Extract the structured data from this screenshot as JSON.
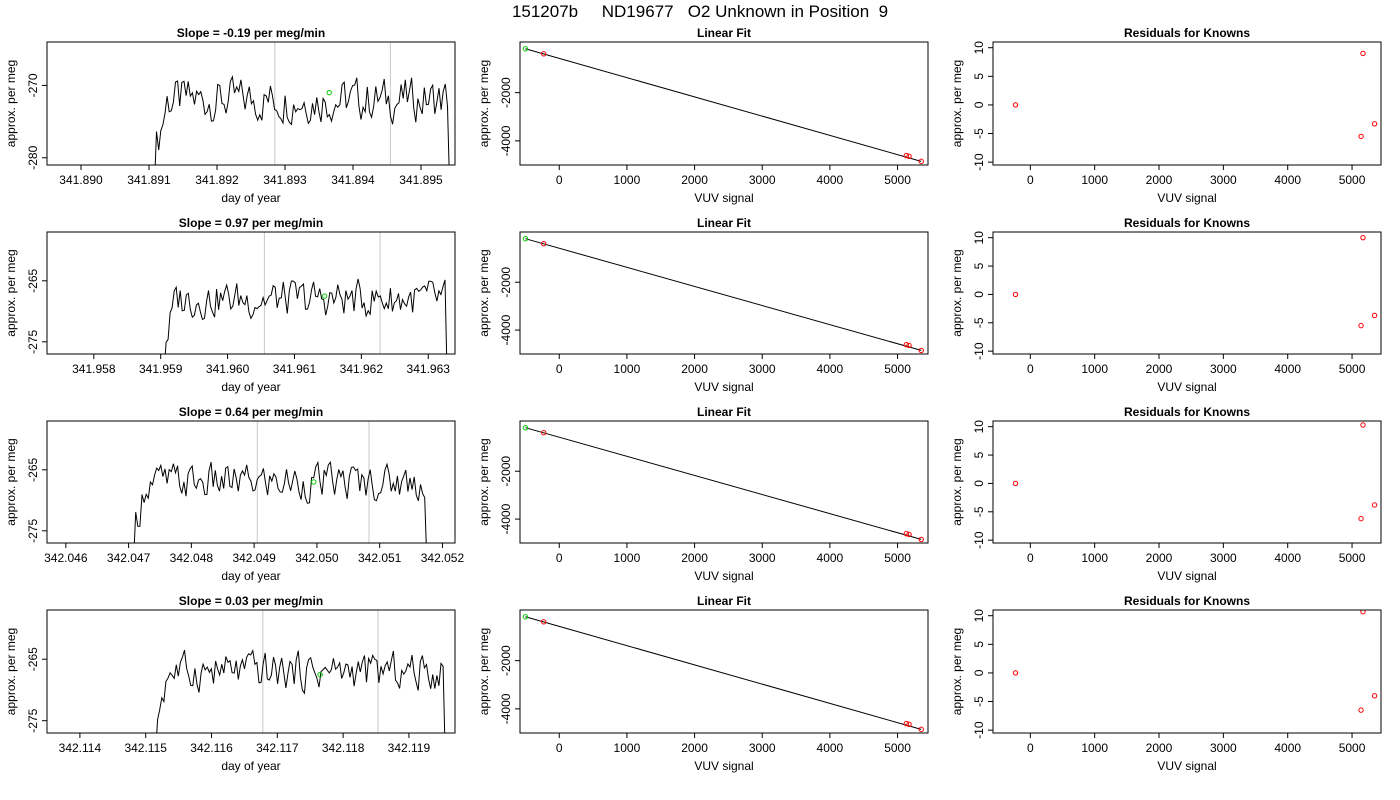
{
  "page_title": "151207b     ND19677   O2 Unknown in Position  9",
  "colors": {
    "known_point": "#ff0000",
    "unknown_point": "#00cc00",
    "trace": "#000000",
    "marker_line": "#c8c8c8"
  },
  "chart_data": [
    {
      "type": "line",
      "title": "Slope =  -0.19  per meg/min",
      "xlabel": "day of year",
      "ylabel": "approx. per meg",
      "xlim": [
        341.8895,
        341.8955
      ],
      "ylim": [
        -281,
        -264
      ],
      "xticks": [
        341.89,
        341.891,
        341.892,
        341.893,
        341.894,
        341.895
      ],
      "xtick_labels": [
        "341.890",
        "341.891",
        "341.892",
        "341.893",
        "341.894",
        "341.895"
      ],
      "yticks": [
        -270,
        -280
      ],
      "ytick_labels": [
        "-270",
        "-280"
      ],
      "marker_lines_x": [
        341.89285,
        341.89455
      ],
      "trace_start": 341.89108,
      "trace_end": 341.89542,
      "trace_mean": -272.0,
      "trace_amp": 3.0,
      "highlight_point": {
        "x": 341.89365,
        "y": -271.0
      }
    },
    {
      "type": "scatter",
      "title": "Linear Fit",
      "xlabel": "VUV signal",
      "ylabel": "approx. per meg",
      "xlim": [
        -580,
        5450
      ],
      "ylim": [
        -5000,
        100
      ],
      "xticks": [
        0,
        1000,
        2000,
        3000,
        4000,
        5000
      ],
      "xtick_labels": [
        "0",
        "1000",
        "2000",
        "3000",
        "4000",
        "5000"
      ],
      "yticks": [
        -2000,
        -4000
      ],
      "ytick_labels": [
        "-2000",
        "-4000"
      ],
      "fit_line": [
        [
          -500,
          -180
        ],
        [
          5350,
          -4850
        ]
      ],
      "points_known": [
        [
          -230,
          -390
        ],
        [
          5130,
          -4610
        ],
        [
          5170,
          -4640
        ],
        [
          5350,
          -4850
        ]
      ],
      "points_unknown": [
        [
          -500,
          -180
        ]
      ]
    },
    {
      "type": "scatter",
      "title": "Residuals for Knowns",
      "xlabel": "VUV signal",
      "ylabel": "approx. per meg",
      "xlim": [
        -580,
        5450
      ],
      "ylim": [
        -10.5,
        11
      ],
      "xticks": [
        0,
        1000,
        2000,
        3000,
        4000,
        5000
      ],
      "xtick_labels": [
        "0",
        "1000",
        "2000",
        "3000",
        "4000",
        "5000"
      ],
      "yticks": [
        10,
        5,
        0,
        -5,
        -10
      ],
      "ytick_labels": [
        "10",
        "5",
        "0",
        "-5",
        "-10"
      ],
      "points_known": [
        [
          -230,
          0.0
        ],
        [
          5140,
          -5.5
        ],
        [
          5170,
          9.0
        ],
        [
          5350,
          -3.3
        ]
      ]
    },
    {
      "type": "line",
      "title": "Slope =  0.97  per meg/min",
      "xlabel": "day of year",
      "ylabel": "approx. per meg",
      "xlim": [
        341.9573,
        341.9634
      ],
      "ylim": [
        -277,
        -257
      ],
      "xticks": [
        341.958,
        341.959,
        341.96,
        341.961,
        341.962,
        341.963
      ],
      "xtick_labels": [
        "341.958",
        "341.959",
        "341.960",
        "341.961",
        "341.962",
        "341.963"
      ],
      "yticks": [
        -265,
        -275
      ],
      "ytick_labels": [
        "-265",
        "-275"
      ],
      "marker_lines_x": [
        341.96055,
        341.96228
      ],
      "trace_start": 341.95905,
      "trace_end": 341.96328,
      "trace_mean": -268.0,
      "trace_amp": 3.0,
      "highlight_point": {
        "x": 341.96145,
        "y": -267.5
      }
    },
    {
      "type": "scatter",
      "title": "Linear Fit",
      "xlabel": "VUV signal",
      "ylabel": "approx. per meg",
      "xlim": [
        -580,
        5450
      ],
      "ylim": [
        -5000,
        100
      ],
      "xticks": [
        0,
        1000,
        2000,
        3000,
        4000,
        5000
      ],
      "xtick_labels": [
        "0",
        "1000",
        "2000",
        "3000",
        "4000",
        "5000"
      ],
      "yticks": [
        -2000,
        -4000
      ],
      "ytick_labels": [
        "-2000",
        "-4000"
      ],
      "fit_line": [
        [
          -500,
          -180
        ],
        [
          5350,
          -4850
        ]
      ],
      "points_known": [
        [
          -230,
          -390
        ],
        [
          5130,
          -4610
        ],
        [
          5170,
          -4640
        ],
        [
          5350,
          -4850
        ]
      ],
      "points_unknown": [
        [
          -500,
          -180
        ]
      ]
    },
    {
      "type": "scatter",
      "title": "Residuals for Knowns",
      "xlabel": "VUV signal",
      "ylabel": "approx. per meg",
      "xlim": [
        -580,
        5450
      ],
      "ylim": [
        -10.5,
        11
      ],
      "xticks": [
        0,
        1000,
        2000,
        3000,
        4000,
        5000
      ],
      "xtick_labels": [
        "0",
        "1000",
        "2000",
        "3000",
        "4000",
        "5000"
      ],
      "yticks": [
        10,
        5,
        0,
        -5,
        -10
      ],
      "ytick_labels": [
        "10",
        "5",
        "0",
        "-5",
        "-10"
      ],
      "points_known": [
        [
          -230,
          0.0
        ],
        [
          5140,
          -5.5
        ],
        [
          5170,
          10.0
        ],
        [
          5350,
          -3.7
        ]
      ]
    },
    {
      "type": "line",
      "title": "Slope =  0.64  per meg/min",
      "xlabel": "day of year",
      "ylabel": "approx. per meg",
      "xlim": [
        342.0457,
        342.0522
      ],
      "ylim": [
        -277,
        -257
      ],
      "xticks": [
        342.046,
        342.047,
        342.048,
        342.049,
        342.05,
        342.051,
        342.052
      ],
      "xtick_labels": [
        "342.046",
        "342.047",
        "342.048",
        "342.049",
        "342.050",
        "342.051",
        "342.052"
      ],
      "yticks": [
        -265,
        -275
      ],
      "ytick_labels": [
        "-265",
        "-275"
      ],
      "marker_lines_x": [
        342.04905,
        342.05083
      ],
      "trace_start": 342.04708,
      "trace_end": 342.05175,
      "trace_mean": -267.0,
      "trace_amp": 3.0,
      "highlight_point": {
        "x": 342.04995,
        "y": -267.0
      }
    },
    {
      "type": "scatter",
      "title": "Linear Fit",
      "xlabel": "VUV signal",
      "ylabel": "approx. per meg",
      "xlim": [
        -580,
        5450
      ],
      "ylim": [
        -5000,
        100
      ],
      "xticks": [
        0,
        1000,
        2000,
        3000,
        4000,
        5000
      ],
      "xtick_labels": [
        "0",
        "1000",
        "2000",
        "3000",
        "4000",
        "5000"
      ],
      "yticks": [
        -2000,
        -4000
      ],
      "ytick_labels": [
        "-2000",
        "-4000"
      ],
      "fit_line": [
        [
          -500,
          -180
        ],
        [
          5350,
          -4850
        ]
      ],
      "points_known": [
        [
          -230,
          -390
        ],
        [
          5130,
          -4610
        ],
        [
          5170,
          -4640
        ],
        [
          5350,
          -4850
        ]
      ],
      "points_unknown": [
        [
          -500,
          -180
        ]
      ]
    },
    {
      "type": "scatter",
      "title": "Residuals for Knowns",
      "xlabel": "VUV signal",
      "ylabel": "approx. per meg",
      "xlim": [
        -580,
        5450
      ],
      "ylim": [
        -10.5,
        11
      ],
      "xticks": [
        0,
        1000,
        2000,
        3000,
        4000,
        5000
      ],
      "xtick_labels": [
        "0",
        "1000",
        "2000",
        "3000",
        "4000",
        "5000"
      ],
      "yticks": [
        10,
        5,
        0,
        -5,
        -10
      ],
      "ytick_labels": [
        "10",
        "5",
        "0",
        "-5",
        "-10"
      ],
      "points_known": [
        [
          -230,
          0.0
        ],
        [
          5140,
          -6.2
        ],
        [
          5170,
          10.3
        ],
        [
          5350,
          -3.8
        ]
      ]
    },
    {
      "type": "line",
      "title": "Slope =  0.03  per meg/min",
      "xlabel": "day of year",
      "ylabel": "approx. per meg",
      "xlim": [
        342.1135,
        342.1197
      ],
      "ylim": [
        -277,
        -257
      ],
      "xticks": [
        342.114,
        342.115,
        342.116,
        342.117,
        342.118,
        342.119
      ],
      "xtick_labels": [
        "342.114",
        "342.115",
        "342.116",
        "342.117",
        "342.118",
        "342.119"
      ],
      "yticks": [
        -265,
        -275
      ],
      "ytick_labels": [
        "-265",
        "-275"
      ],
      "marker_lines_x": [
        342.11678,
        342.11853
      ],
      "trace_start": 342.11515,
      "trace_end": 342.11955,
      "trace_mean": -267.0,
      "trace_amp": 3.0,
      "highlight_point": {
        "x": 342.11765,
        "y": -267.5
      }
    },
    {
      "type": "scatter",
      "title": "Linear Fit",
      "xlabel": "VUV signal",
      "ylabel": "approx. per meg",
      "xlim": [
        -580,
        5450
      ],
      "ylim": [
        -5000,
        100
      ],
      "xticks": [
        0,
        1000,
        2000,
        3000,
        4000,
        5000
      ],
      "xtick_labels": [
        "0",
        "1000",
        "2000",
        "3000",
        "4000",
        "5000"
      ],
      "yticks": [
        -2000,
        -4000
      ],
      "ytick_labels": [
        "-2000",
        "-4000"
      ],
      "fit_line": [
        [
          -500,
          -180
        ],
        [
          5350,
          -4850
        ]
      ],
      "points_known": [
        [
          -230,
          -390
        ],
        [
          5130,
          -4610
        ],
        [
          5170,
          -4640
        ],
        [
          5350,
          -4850
        ]
      ],
      "points_unknown": [
        [
          -500,
          -180
        ]
      ]
    },
    {
      "type": "scatter",
      "title": "Residuals for Knowns",
      "xlabel": "VUV signal",
      "ylabel": "approx. per meg",
      "xlim": [
        -580,
        5450
      ],
      "ylim": [
        -10.5,
        11
      ],
      "xticks": [
        0,
        1000,
        2000,
        3000,
        4000,
        5000
      ],
      "xtick_labels": [
        "0",
        "1000",
        "2000",
        "3000",
        "4000",
        "5000"
      ],
      "yticks": [
        10,
        5,
        0,
        -5,
        -10
      ],
      "ytick_labels": [
        "10",
        "5",
        "0",
        "-5",
        "-10"
      ],
      "points_known": [
        [
          -230,
          0.0
        ],
        [
          5140,
          -6.5
        ],
        [
          5170,
          10.7
        ],
        [
          5350,
          -4.0
        ]
      ]
    }
  ]
}
